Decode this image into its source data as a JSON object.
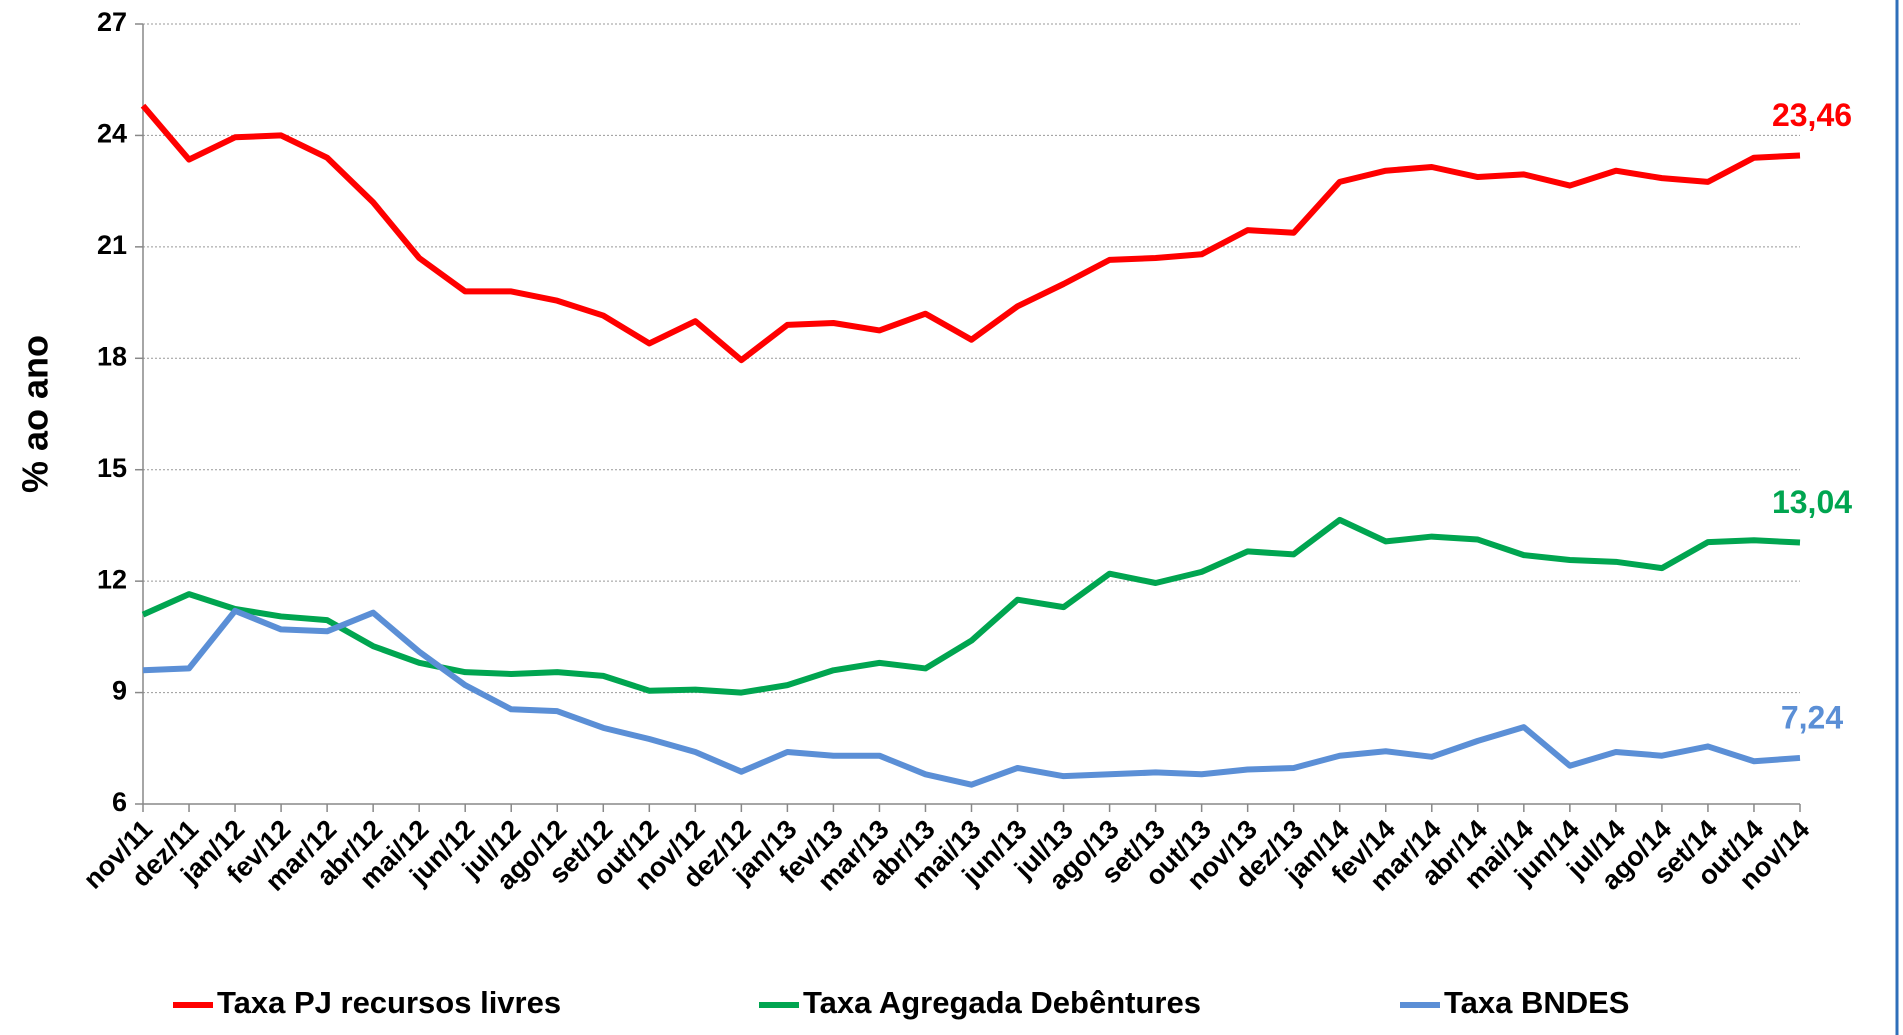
{
  "chart_data": {
    "type": "line",
    "ylabel": "% ao ano",
    "categories": [
      "nov/11",
      "dez/11",
      "jan/12",
      "fev/12",
      "mar/12",
      "abr/12",
      "mai/12",
      "jun/12",
      "jul/12",
      "ago/12",
      "set/12",
      "out/12",
      "nov/12",
      "dez/12",
      "jan/13",
      "fev/13",
      "mar/13",
      "abr/13",
      "mai/13",
      "jun/13",
      "jul/13",
      "ago/13",
      "set/13",
      "out/13",
      "nov/13",
      "dez/13",
      "jan/14",
      "fev/14",
      "mar/14",
      "abr/14",
      "mai/14",
      "jun/14",
      "jul/14",
      "ago/14",
      "set/14",
      "out/14",
      "nov/14"
    ],
    "series": [
      {
        "name": "Taxa PJ recursos livres",
        "color": "#ff0000",
        "values": [
          24.8,
          23.35,
          23.95,
          24.0,
          23.4,
          22.2,
          20.7,
          19.8,
          19.8,
          19.55,
          19.15,
          18.4,
          19.0,
          17.95,
          18.9,
          18.95,
          18.75,
          19.2,
          18.5,
          19.4,
          20.0,
          20.65,
          20.7,
          20.8,
          21.45,
          21.38,
          22.75,
          23.05,
          23.15,
          22.88,
          22.95,
          22.65,
          23.05,
          22.85,
          22.75,
          23.4,
          23.46
        ],
        "value_labels": [
          null,
          null,
          null,
          null,
          null,
          null,
          null,
          null,
          null,
          null,
          null,
          null,
          null,
          null,
          null,
          null,
          null,
          null,
          null,
          null,
          null,
          null,
          null,
          null,
          null,
          null,
          null,
          null,
          null,
          null,
          null,
          null,
          null,
          null,
          null,
          null,
          "23,46"
        ]
      },
      {
        "name": "Taxa Agregada Debêntures",
        "color": "#00a550",
        "values": [
          11.1,
          11.65,
          11.25,
          11.05,
          10.95,
          10.25,
          9.8,
          9.55,
          9.5,
          9.55,
          9.45,
          9.05,
          9.08,
          9.0,
          9.2,
          9.6,
          9.8,
          9.65,
          10.4,
          11.5,
          11.3,
          12.2,
          11.95,
          12.25,
          12.8,
          12.72,
          13.65,
          13.07,
          13.2,
          13.12,
          12.7,
          12.57,
          12.52,
          12.35,
          13.05,
          13.1,
          13.04
        ],
        "value_labels": [
          null,
          null,
          null,
          null,
          null,
          null,
          null,
          null,
          null,
          null,
          null,
          null,
          null,
          null,
          null,
          null,
          null,
          null,
          null,
          null,
          null,
          null,
          null,
          null,
          null,
          null,
          null,
          null,
          null,
          null,
          null,
          null,
          null,
          null,
          null,
          null,
          "13,04"
        ]
      },
      {
        "name": "Taxa BNDES",
        "color": "#5b8fd6",
        "values": [
          9.6,
          9.65,
          11.2,
          10.7,
          10.65,
          11.15,
          10.1,
          9.2,
          8.55,
          8.5,
          8.05,
          7.75,
          7.4,
          6.87,
          7.4,
          7.3,
          7.3,
          6.8,
          6.52,
          6.97,
          6.75,
          6.8,
          6.85,
          6.8,
          6.93,
          6.97,
          7.3,
          7.42,
          7.27,
          7.7,
          8.07,
          7.03,
          7.4,
          7.3,
          7.55,
          7.15,
          7.24
        ],
        "value_labels": [
          null,
          null,
          null,
          null,
          null,
          null,
          null,
          null,
          null,
          null,
          null,
          null,
          null,
          null,
          null,
          null,
          null,
          null,
          null,
          null,
          null,
          null,
          null,
          null,
          null,
          null,
          null,
          null,
          null,
          null,
          null,
          null,
          null,
          null,
          null,
          null,
          "7,24"
        ]
      }
    ],
    "ylim": [
      6,
      27
    ],
    "yticks": [
      6,
      9,
      12,
      15,
      18,
      21,
      24,
      27
    ],
    "grid": true,
    "legend": "bottom"
  }
}
